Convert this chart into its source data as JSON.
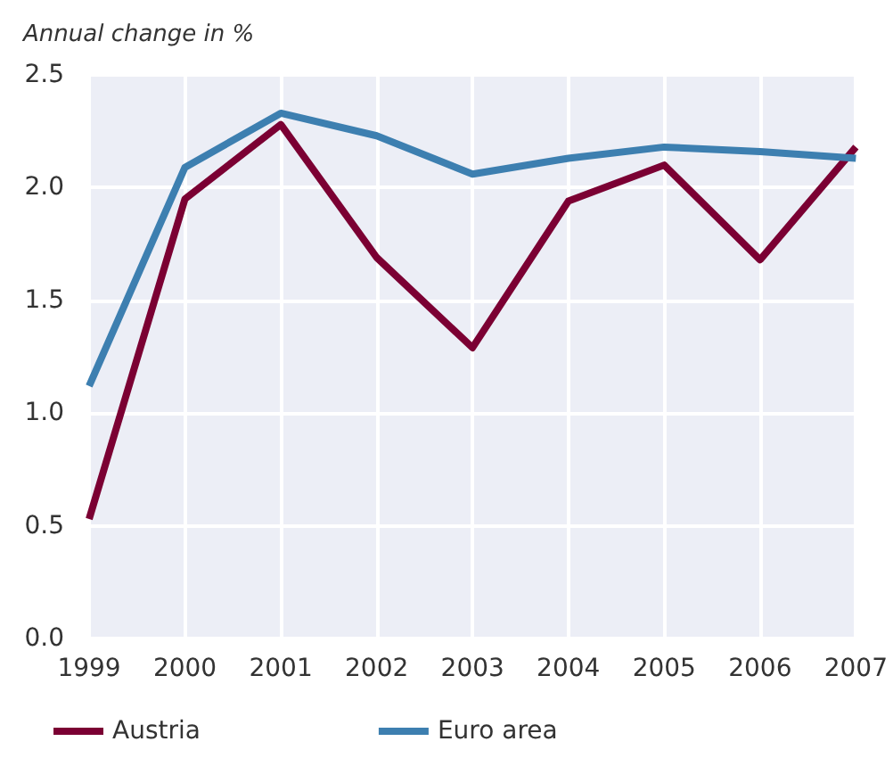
{
  "chart_data": {
    "type": "line",
    "ylabel": "Annual change in %",
    "categories": [
      "1999",
      "2000",
      "2001",
      "2002",
      "2003",
      "2004",
      "2005",
      "2006",
      "2007"
    ],
    "series": [
      {
        "name": "Austria",
        "color": "#7b0033",
        "values": [
          0.53,
          1.95,
          2.28,
          1.69,
          1.29,
          1.94,
          2.1,
          1.68,
          2.18
        ]
      },
      {
        "name": "Euro area",
        "color": "#3d7fb0",
        "values": [
          1.12,
          2.09,
          2.33,
          2.23,
          2.06,
          2.13,
          2.18,
          2.16,
          2.13
        ]
      }
    ],
    "ylim": [
      0,
      2.5
    ],
    "yticks": [
      {
        "value": 0,
        "label": "0.0"
      },
      0.5,
      {
        "value": 1,
        "label": "1.0"
      },
      1.5,
      {
        "value": 2,
        "label": "2.0"
      },
      2.5
    ],
    "grid": true,
    "legend": "bottom left",
    "marker": "none",
    "line_style": "solid"
  }
}
